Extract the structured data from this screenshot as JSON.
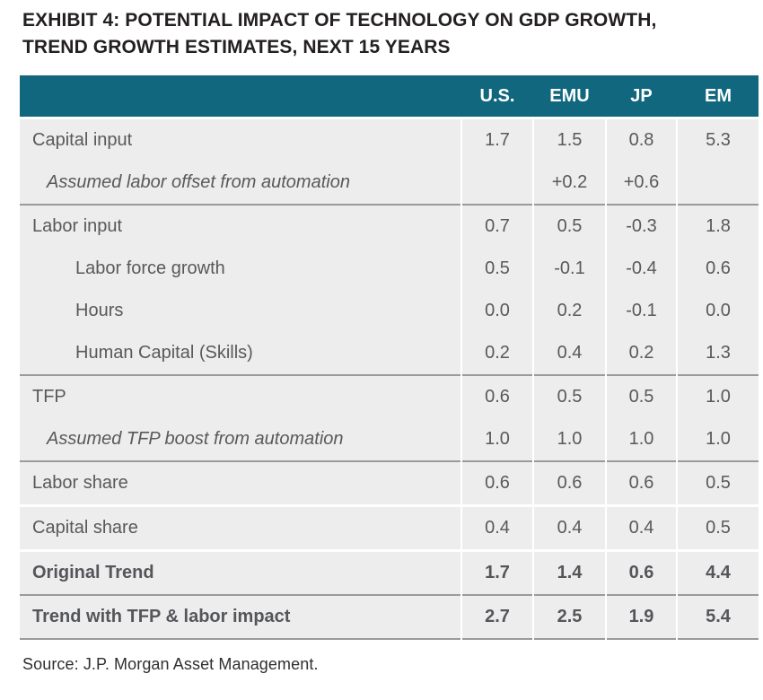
{
  "title": {
    "line1": "EXHIBIT 4: POTENTIAL IMPACT OF TECHNOLOGY ON GDP GROWTH,",
    "line2": "TREND GROWTH ESTIMATES, NEXT 15 YEARS"
  },
  "table": {
    "header": {
      "label": "",
      "columns": [
        "U.S.",
        "EMU",
        "JP",
        "EM"
      ]
    },
    "rows": [
      {
        "label": "Capital input",
        "values": [
          "1.7",
          "1.5",
          "0.8",
          "5.3"
        ],
        "style": "top",
        "divider": "none"
      },
      {
        "label": "Assumed labor offset from automation",
        "values": [
          "",
          "+0.2",
          "+0.6",
          ""
        ],
        "style": "assumed",
        "divider": "section"
      },
      {
        "label": "Labor input",
        "values": [
          "0.7",
          "0.5",
          "-0.3",
          "1.8"
        ],
        "style": "top",
        "divider": "none"
      },
      {
        "label": "Labor force growth",
        "values": [
          "0.5",
          "-0.1",
          "-0.4",
          "0.6"
        ],
        "style": "sub",
        "divider": "none"
      },
      {
        "label": "Hours",
        "values": [
          "0.0",
          "0.2",
          "-0.1",
          "0.0"
        ],
        "style": "sub",
        "divider": "none"
      },
      {
        "label": "Human Capital (Skills)",
        "values": [
          "0.2",
          "0.4",
          "0.2",
          "1.3"
        ],
        "style": "sub",
        "divider": "section"
      },
      {
        "label": "TFP",
        "values": [
          "0.6",
          "0.5",
          "0.5",
          "1.0"
        ],
        "style": "top",
        "divider": "none"
      },
      {
        "label": "Assumed TFP boost from automation",
        "values": [
          "1.0",
          "1.0",
          "1.0",
          "1.0"
        ],
        "style": "assumed",
        "divider": "section"
      },
      {
        "label": "Labor share",
        "values": [
          "0.6",
          "0.6",
          "0.6",
          "0.5"
        ],
        "style": "top",
        "divider": "gap"
      },
      {
        "label": "Capital share",
        "values": [
          "0.4",
          "0.4",
          "0.4",
          "0.5"
        ],
        "style": "top",
        "divider": "gap"
      },
      {
        "label": "Original Trend",
        "values": [
          "1.7",
          "1.4",
          "0.6",
          "4.4"
        ],
        "style": "bold",
        "divider": "section"
      },
      {
        "label": "Trend with TFP & labor impact",
        "values": [
          "2.7",
          "2.5",
          "1.9",
          "5.4"
        ],
        "style": "bold",
        "divider": "section"
      }
    ]
  },
  "source": "Source: J.P. Morgan Asset Management.",
  "colors": {
    "header_bg": "#11677E",
    "header_text": "#FFFFFF",
    "row_bg": "#EDEDED",
    "section_divider": "#9A9A9A",
    "body_text": "#58595B",
    "title_text": "#242021"
  }
}
